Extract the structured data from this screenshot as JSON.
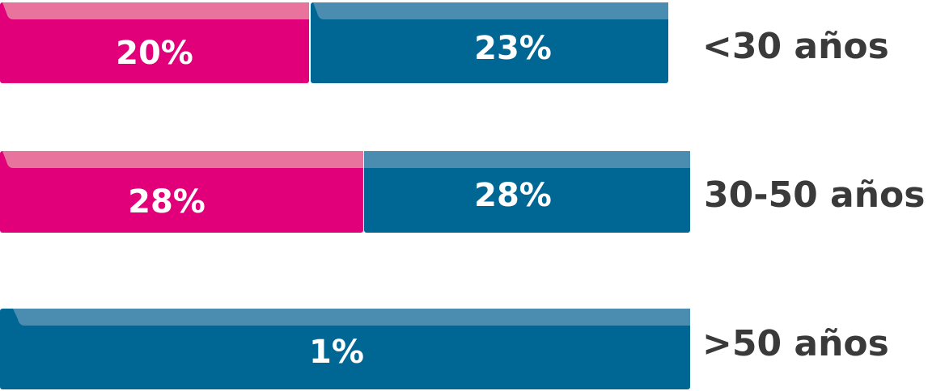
{
  "rows": [
    {
      "segments": [
        "20%",
        "23%"
      ],
      "label": "<30 años"
    },
    {
      "segments": [
        "28%",
        "28%"
      ],
      "label": "30-50 años"
    },
    {
      "segments": [
        "1%"
      ],
      "label": ">50 años"
    }
  ]
}
